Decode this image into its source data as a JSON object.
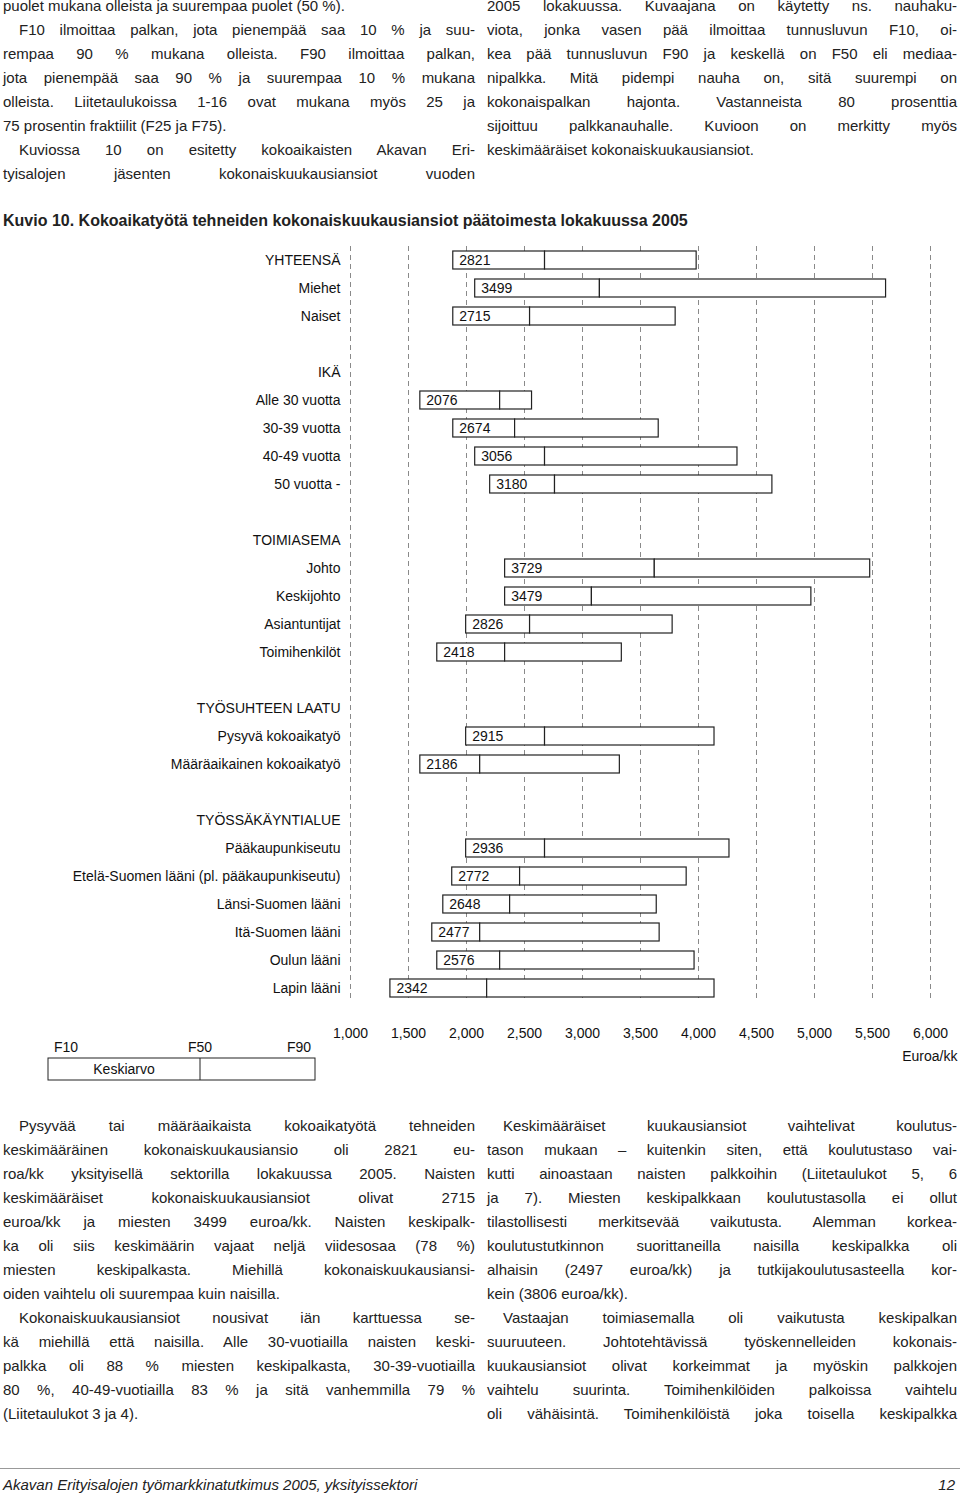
{
  "top_text": {
    "left": [
      [
        "puolet mukana olleista ja suurempaa puolet (50 %)."
      ],
      [
        "F10 ilmoittaa palkan, jota pienempää saa 10 % ja suu-",
        "rempaa 90 % mukana olleista. F90 ilmoittaa palkan,",
        "jota pienempää saa 90 % ja suurempaa 10 % mukana",
        "olleista. Liitetaulukoissa 1-16 ovat mukana myös 25 ja",
        "75 prosentin fraktiilit (F25 ja F75)."
      ],
      [
        "Kuviossa 10 on esitetty kokoaikaisten Akavan Eri-",
        "tyisalojen jäsenten kokonaiskuukausiansiot vuoden"
      ]
    ],
    "right": [
      [
        "2005 lokakuussa. Kuvaajana on käytetty ns. nauhaku-",
        "viota, jonka vasen pää ilmoittaa tunnusluvun F10, oi-",
        "kea pää tunnusluvun F90 ja keskellä on F50 eli mediaa-",
        "nipalkka. Mitä pidempi nauha on, sitä suurempi on",
        "kokonaispalkan hajonta. Vastanneista 80 prosenttia",
        "sijoittuu palkkanauhalle. Kuvioon on merkitty myös",
        "keskimääräiset kokonaiskuukausiansiot."
      ]
    ]
  },
  "chart_data": {
    "type": "range",
    "title": "Kuvio 10. Kokoaikatyötä tehneiden kokonaiskuukausiansiot päätoimesta lokakuussa 2005",
    "orientation": "horizontal",
    "categories": [
      "YHTEENSÄ",
      "Miehet",
      "Naiset",
      null,
      "IKÄ",
      "Alle 30 vuotta",
      "30-39 vuotta",
      "40-49 vuotta",
      "50 vuotta -",
      null,
      "TOIMIASEMA",
      "Johto",
      "Keskijohto",
      "Asiantuntijat",
      "Toimihenkilöt",
      null,
      "TYÖSUHTEEN LAATU",
      "Pysyvä kokoaikatyö",
      "Määräaikainen kokoaikatyö",
      null,
      "TYÖSSÄKÄYNTIALUE",
      "Pääkaupunkiseutu",
      "Etelä-Suomen lääni (pl. pääkaupunkiseutu)",
      "Länsi-Suomen lääni",
      "Itä-Suomen lääni",
      "Oulun lääni",
      "Lapin lääni"
    ],
    "series": [
      {
        "name": "F10",
        "values": [
          1886,
          2075,
          1886,
          null,
          null,
          1602,
          1886,
          2075,
          2204,
          null,
          null,
          2333,
          2333,
          1997,
          1748,
          null,
          null,
          1997,
          1602,
          null,
          null,
          1997,
          1877,
          1800,
          1705,
          1748,
          1344
        ]
      },
      {
        "name": "F50",
        "values": [
          2677,
          3150,
          2548,
          null,
          null,
          2290,
          2419,
          2677,
          2763,
          null,
          null,
          3623,
          3081,
          2548,
          2333,
          null,
          null,
          2677,
          2118,
          null,
          null,
          2677,
          2462,
          2376,
          2118,
          2290,
          2178
        ]
      },
      {
        "name": "F90",
        "values": [
          3984,
          5617,
          3803,
          null,
          null,
          2565,
          3657,
          4336,
          4637,
          null,
          null,
          5480,
          4973,
          3777,
          3339,
          null,
          null,
          4138,
          3322,
          null,
          null,
          4267,
          3898,
          3640,
          3665,
          3966,
          4138
        ]
      },
      {
        "name": "Keskiarvo",
        "values": [
          2821,
          3499,
          2715,
          null,
          null,
          2076,
          2674,
          3056,
          3180,
          null,
          null,
          3729,
          3479,
          2826,
          2418,
          null,
          null,
          2915,
          2186,
          null,
          null,
          2936,
          2772,
          2648,
          2477,
          2576,
          2342
        ]
      }
    ],
    "xlim": [
      1000,
      6000
    ],
    "xticks": [
      1000,
      1500,
      2000,
      2500,
      3000,
      3500,
      4000,
      4500,
      5000,
      5500,
      6000
    ],
    "xlabel": "Euroa/kk",
    "grid": true,
    "data_labels": true
  },
  "bottom_text": {
    "left": [
      [
        "Pysyvää tai määräaikaista kokoaikatyötä tehneiden",
        "keskimääräinen kokonaiskuukausiansio oli 2821 eu-",
        "roa/kk yksityisellä sektorilla lokakuussa 2005. Naisten",
        "keskimääräiset kokonaiskuukausiansiot olivat 2715",
        "euroa/kk ja miesten 3499 euroa/kk. Naisten keskipalk-",
        "ka oli siis keskimäärin vajaat neljä viidesosaa (78 %)",
        "miesten keskipalkasta. Miehillä kokonaiskuukausiansi-",
        "oiden vaihtelu oli suurempaa kuin naisilla."
      ],
      [
        "Kokonaiskuukausiansiot nousivat iän karttuessa se-",
        "kä miehillä että naisilla. Alle 30-vuotiailla naisten keski-",
        "palkka oli 88 % miesten keskipalkasta, 30-39-vuotiailla",
        "80 %, 40-49-vuotiailla 83 % ja sitä vanhemmilla 79 %",
        "(Liitetaulukot 3 ja 4)."
      ]
    ],
    "right": [
      [
        "Keskimääräiset kuukausiansiot vaihtelivat koulutus-",
        "tason mukaan – kuitenkin siten, että koulutustaso vai-",
        "kutti ainoastaan naisten palkkoihin (Liitetaulukot 5, 6",
        "ja 7). Miesten keskipalkkaan koulutustasolla ei ollut",
        "tilastollisesti merkitsevää vaikutusta. Alemman korkea-",
        "koulutustutkinnon suorittaneilla naisilla keskipalkka oli",
        "alhaisin (2497 euroa/kk) ja tutkijakoulutusasteella kor-",
        "kein (3806 euroa/kk)."
      ],
      [
        "Vastaajan toimiasemalla oli vaikutusta keskipalkan",
        "suuruuteen. Johtotehtävissä työskennelleiden kokonais-",
        "kuukausiansiot olivat korkeimmat ja myöskin palkkojen",
        "vaihtelu suurinta. Toimihenkilöiden palkoissa vaihtelu",
        "oli vähäisintä. Toimihenkilöistä joka toisella keskipalkka"
      ]
    ]
  },
  "footer": {
    "left": "Akavan Erityisalojen työmarkkinatutkimus 2005, yksityissektori",
    "right": "12"
  }
}
